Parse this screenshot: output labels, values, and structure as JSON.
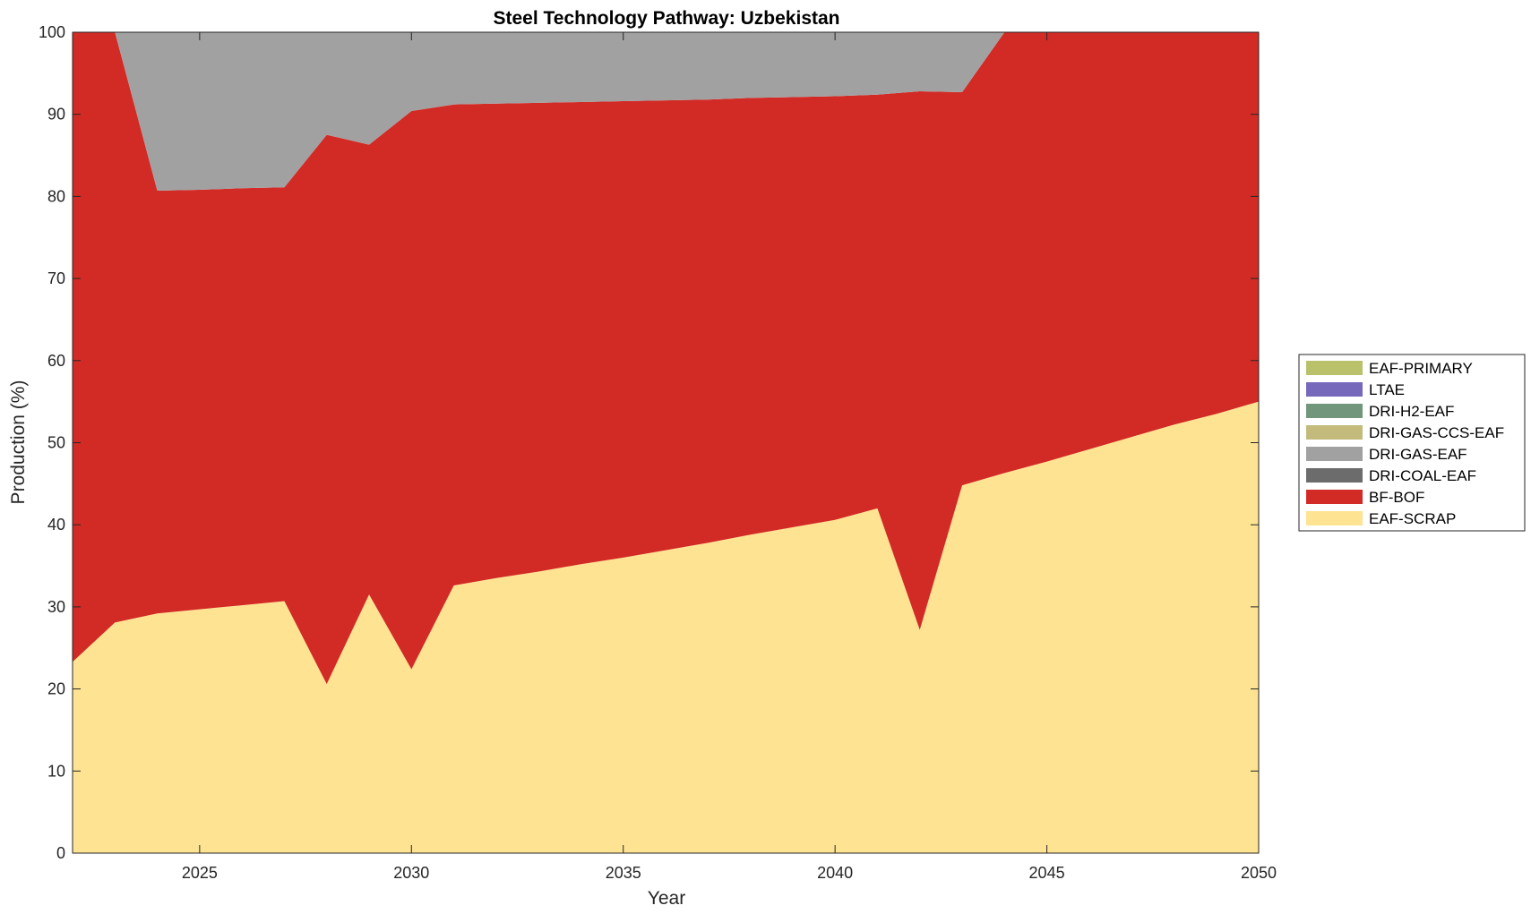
{
  "chart_data": {
    "type": "area",
    "stacked": true,
    "title": "Steel Technology Pathway: Uzbekistan",
    "xlabel": "Year",
    "ylabel": "Production (%)",
    "xlim": [
      2022,
      2050
    ],
    "ylim": [
      0,
      100
    ],
    "xticks": [
      2025,
      2030,
      2035,
      2040,
      2045,
      2050
    ],
    "yticks": [
      0,
      10,
      20,
      30,
      40,
      50,
      60,
      70,
      80,
      90,
      100
    ],
    "legend_position": "right",
    "x": [
      2022,
      2023,
      2024,
      2025,
      2026,
      2027,
      2028,
      2029,
      2030,
      2031,
      2032,
      2033,
      2034,
      2035,
      2036,
      2037,
      2038,
      2039,
      2040,
      2041,
      2042,
      2043,
      2044,
      2045,
      2046,
      2047,
      2048,
      2049,
      2050
    ],
    "series": [
      {
        "name": "EAF-SCRAP",
        "color": "#fee392",
        "values": [
          23.3,
          28.1,
          29.2,
          29.7,
          30.2,
          30.7,
          20.6,
          31.5,
          22.4,
          32.6,
          33.5,
          34.3,
          35.2,
          36.0,
          36.9,
          37.8,
          38.8,
          39.7,
          40.6,
          42.0,
          27.2,
          44.8,
          46.3,
          47.7,
          49.2,
          50.7,
          52.2,
          53.5,
          55.0
        ]
      },
      {
        "name": "BF-BOF",
        "color": "#d22a25",
        "values": [
          76.7,
          71.9,
          51.5,
          51.1,
          50.8,
          50.4,
          66.9,
          54.8,
          68.0,
          58.6,
          57.8,
          57.1,
          56.3,
          55.6,
          54.8,
          54.0,
          53.2,
          52.4,
          51.6,
          50.4,
          65.6,
          47.9,
          53.7,
          52.3,
          50.8,
          49.3,
          47.8,
          46.5,
          45.0
        ]
      },
      {
        "name": "DRI-COAL-EAF",
        "color": "#6c6c6c",
        "values": [
          0,
          0,
          0,
          0,
          0,
          0,
          0,
          0,
          0,
          0,
          0,
          0,
          0,
          0,
          0,
          0,
          0,
          0,
          0,
          0,
          0,
          0,
          0,
          0,
          0,
          0,
          0,
          0,
          0
        ]
      },
      {
        "name": "DRI-GAS-EAF",
        "color": "#a1a1a1",
        "values": [
          0,
          0,
          19.3,
          19.2,
          19.0,
          18.9,
          12.5,
          13.7,
          9.6,
          8.8,
          8.7,
          8.6,
          8.5,
          8.4,
          8.3,
          8.2,
          8.0,
          7.9,
          7.8,
          7.6,
          7.2,
          7.3,
          0,
          0,
          0,
          0,
          0,
          0,
          0
        ]
      },
      {
        "name": "DRI-GAS-CCS-EAF",
        "color": "#c3bb7c",
        "values": [
          0,
          0,
          0,
          0,
          0,
          0,
          0,
          0,
          0,
          0,
          0,
          0,
          0,
          0,
          0,
          0,
          0,
          0,
          0,
          0,
          0,
          0,
          0,
          0,
          0,
          0,
          0,
          0,
          0
        ]
      },
      {
        "name": "DRI-H2-EAF",
        "color": "#71967b",
        "values": [
          0,
          0,
          0,
          0,
          0,
          0,
          0,
          0,
          0,
          0,
          0,
          0,
          0,
          0,
          0,
          0,
          0,
          0,
          0,
          0,
          0,
          0,
          0,
          0,
          0,
          0,
          0,
          0,
          0
        ]
      },
      {
        "name": "LTAE",
        "color": "#7668bb",
        "values": [
          0,
          0,
          0,
          0,
          0,
          0,
          0,
          0,
          0,
          0,
          0,
          0,
          0,
          0,
          0,
          0,
          0,
          0,
          0,
          0,
          0,
          0,
          0,
          0,
          0,
          0,
          0,
          0,
          0
        ]
      },
      {
        "name": "EAF-PRIMARY",
        "color": "#bac16b",
        "values": [
          0,
          0,
          0,
          0,
          0,
          0,
          0,
          0,
          0,
          0,
          0,
          0,
          0,
          0,
          0,
          0,
          0,
          0,
          0,
          0,
          0,
          0,
          0,
          0,
          0,
          0,
          0,
          0,
          0
        ]
      }
    ],
    "legend_order": [
      "EAF-PRIMARY",
      "LTAE",
      "DRI-H2-EAF",
      "DRI-GAS-CCS-EAF",
      "DRI-GAS-EAF",
      "DRI-COAL-EAF",
      "BF-BOF",
      "EAF-SCRAP"
    ]
  }
}
